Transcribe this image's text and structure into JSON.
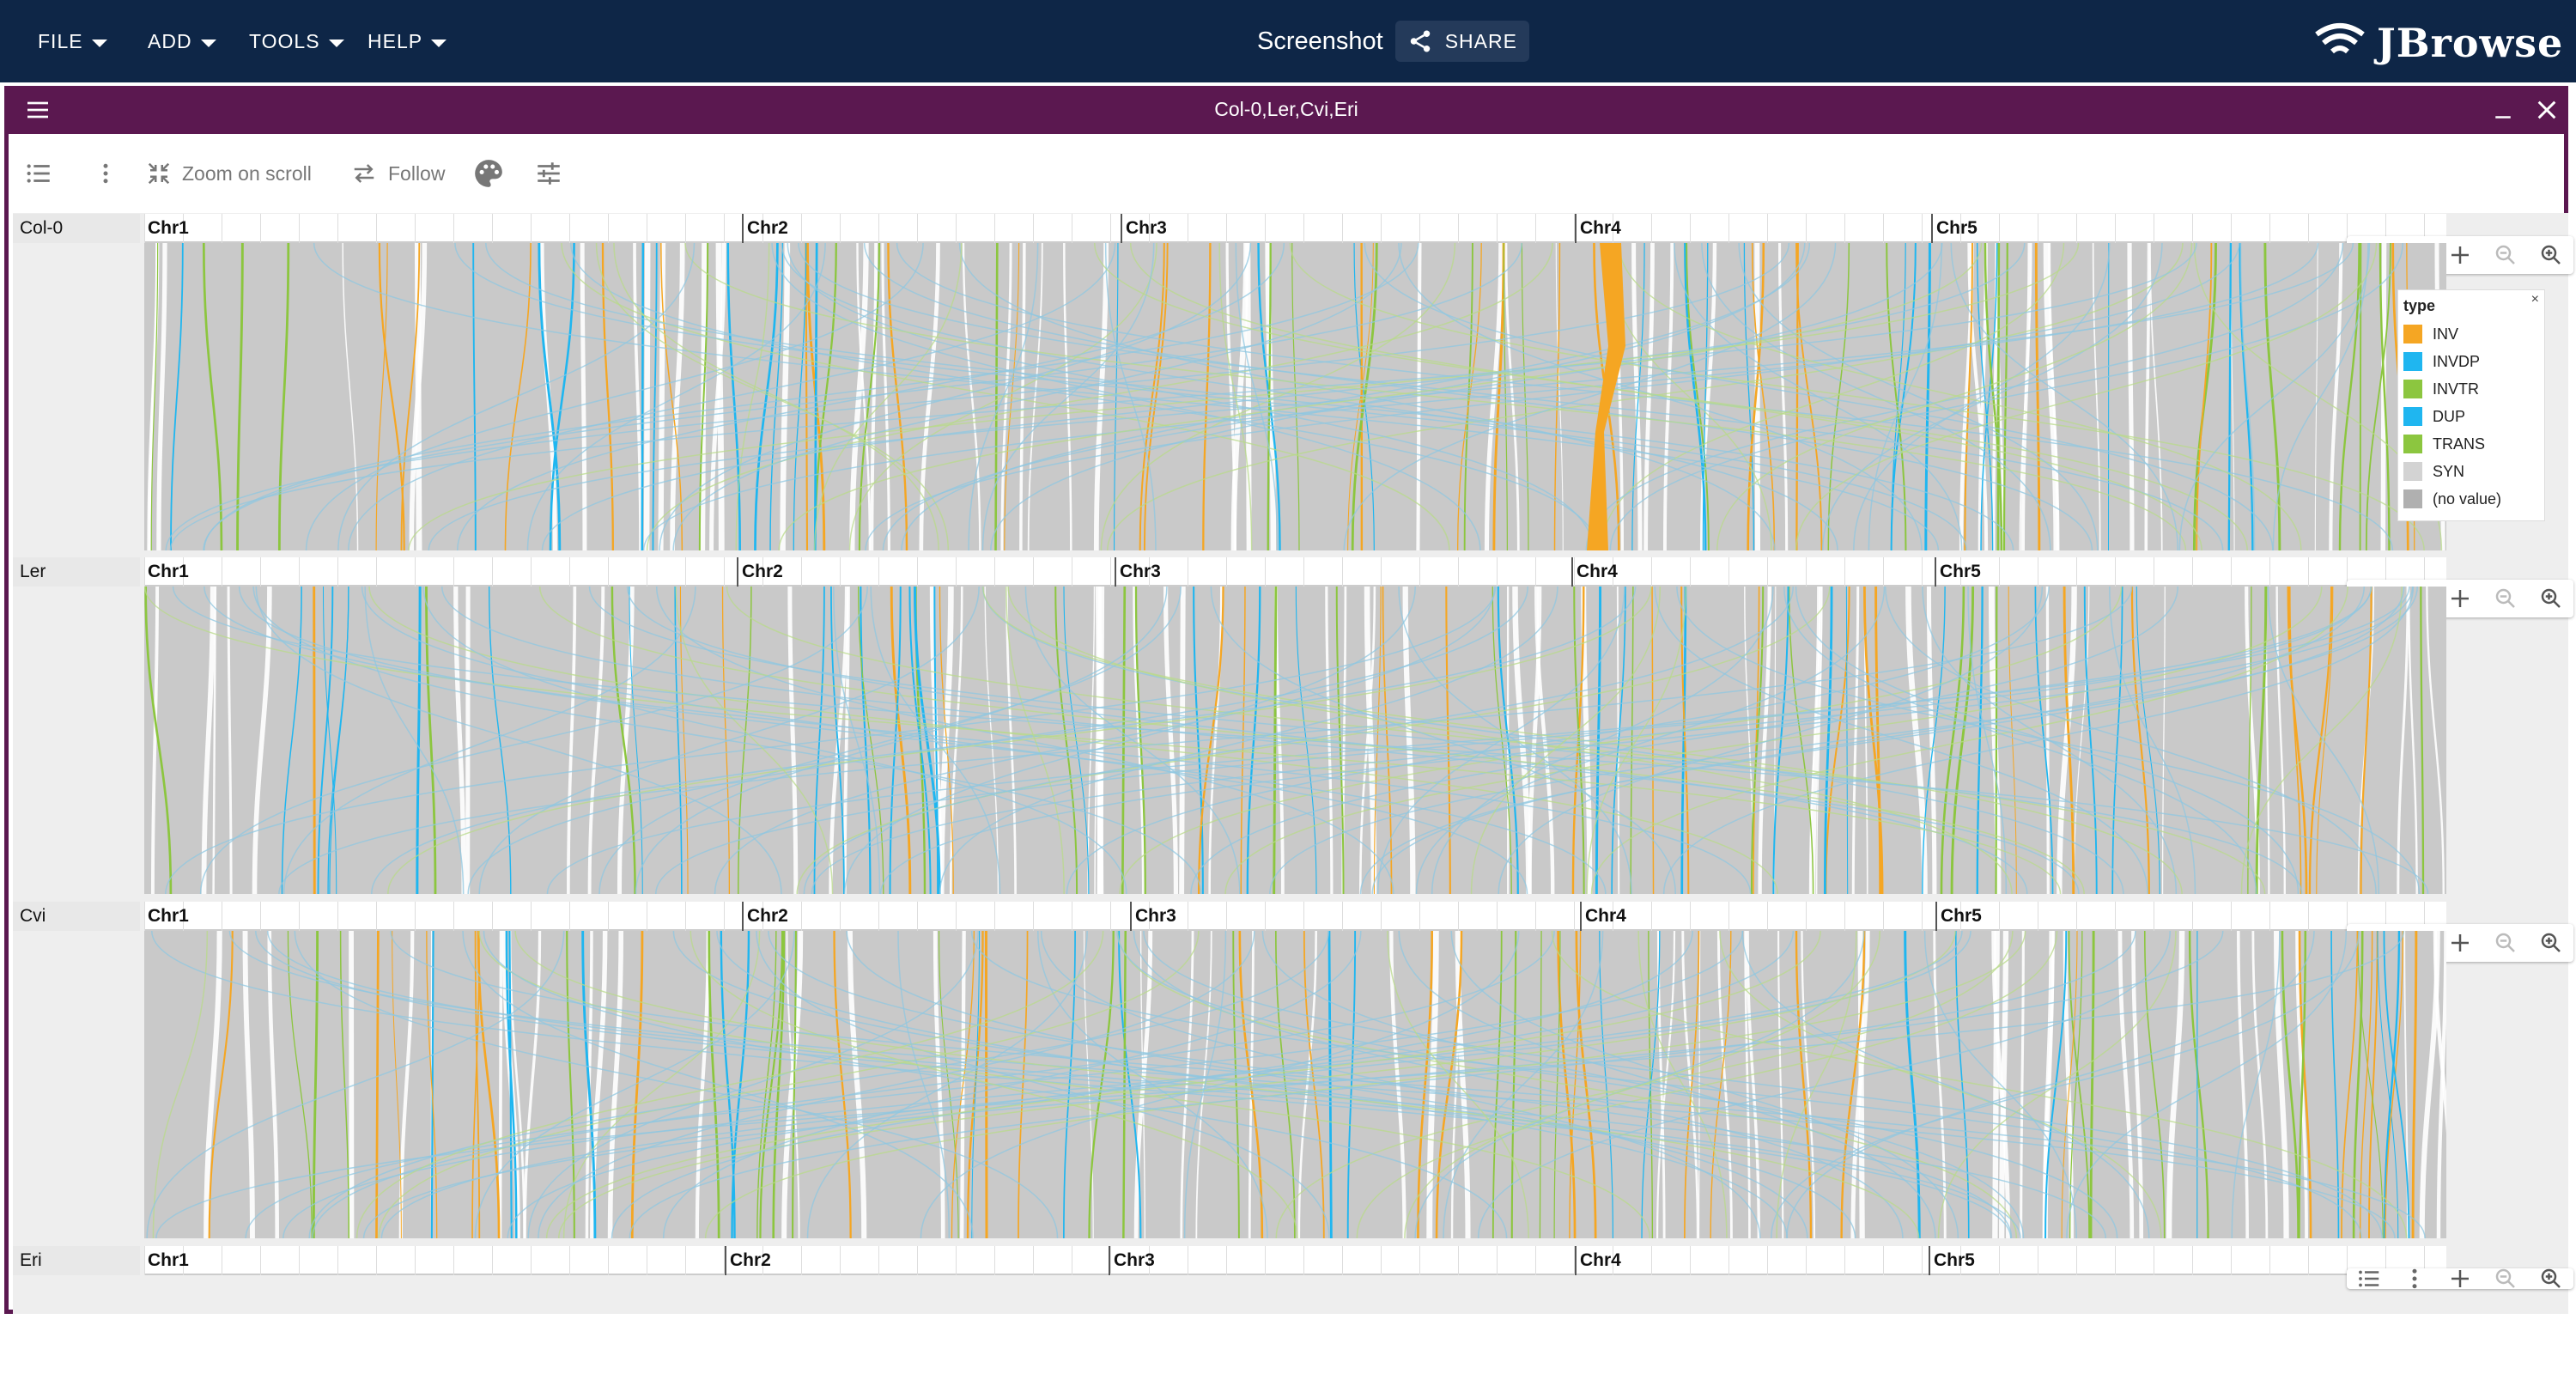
{
  "appbar": {
    "menus": [
      {
        "label": "FILE"
      },
      {
        "label": "ADD"
      },
      {
        "label": "TOOLS"
      },
      {
        "label": "HELP"
      }
    ],
    "session_title": "Screenshot",
    "share_label": "SHARE",
    "logo_text": "JBrowse"
  },
  "view": {
    "title": "Col-0,Ler,Cvi,Eri",
    "toolbar": {
      "zoom_on_scroll": "Zoom on scroll",
      "follow": "Follow"
    }
  },
  "genomes": [
    {
      "name": "Col-0",
      "chromosomes": [
        "Chr1",
        "Chr2",
        "Chr3",
        "Chr4",
        "Chr5"
      ]
    },
    {
      "name": "Ler",
      "chromosomes": [
        "Chr1",
        "Chr2",
        "Chr3",
        "Chr4",
        "Chr5"
      ]
    },
    {
      "name": "Cvi",
      "chromosomes": [
        "Chr1",
        "Chr2",
        "Chr3",
        "Chr4",
        "Chr5"
      ]
    },
    {
      "name": "Eri",
      "chromosomes": [
        "Chr1",
        "Chr2",
        "Chr3",
        "Chr4",
        "Chr5"
      ]
    }
  ],
  "legend": {
    "title": "type",
    "close": "×",
    "items": [
      {
        "label": "INV",
        "color": "#f5a623"
      },
      {
        "label": "INVDP",
        "color": "#1fb6f0"
      },
      {
        "label": "INVTR",
        "color": "#8cc63f"
      },
      {
        "label": "DUP",
        "color": "#1fb6f0"
      },
      {
        "label": "TRANS",
        "color": "#8cc63f"
      },
      {
        "label": "SYN",
        "color": "#d3d3d3"
      },
      {
        "label": "(no value)",
        "color": "#b0b0b0"
      }
    ]
  },
  "colors": {
    "appbar": "#0e2647",
    "view_header": "#5b1850",
    "synteny_bg": "#c9c9c9",
    "inv": "#f5a623",
    "dup": "#1fb6f0",
    "trans": "#8cc63f"
  }
}
